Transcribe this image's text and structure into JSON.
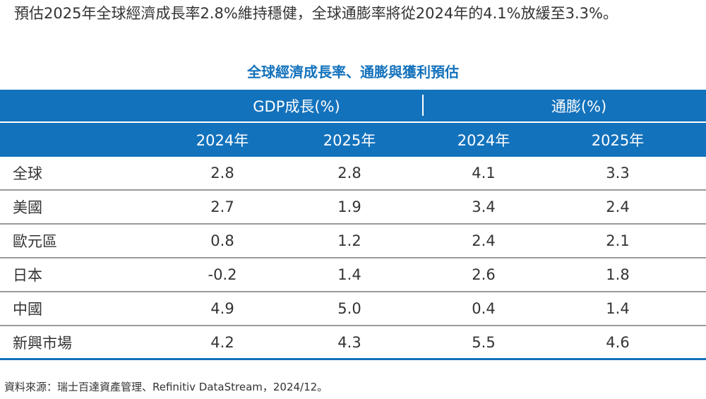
{
  "intro_text": "預估2025年全球經濟成長率2.8%維持穩健，全球通膨率將從2024年的4.1%放緩至3.3%。",
  "table": {
    "title": "全球經濟成長率、通膨與獲利預估",
    "group_headers": [
      "GDP成長(%)",
      "通膨(%)"
    ],
    "year_headers": [
      "2024年",
      "2025年",
      "2024年",
      "2025年"
    ],
    "rows": [
      {
        "region": "全球",
        "values": [
          "2.8",
          "2.8",
          "4.1",
          "3.3"
        ]
      },
      {
        "region": "美國",
        "values": [
          "2.7",
          "1.9",
          "3.4",
          "2.4"
        ]
      },
      {
        "region": "歐元區",
        "values": [
          "0.8",
          "1.2",
          "2.4",
          "2.1"
        ]
      },
      {
        "region": "日本",
        "values": [
          "-0.2",
          "1.4",
          "2.6",
          "1.8"
        ]
      },
      {
        "region": "中國",
        "values": [
          "4.9",
          "5.0",
          "0.4",
          "1.4"
        ]
      },
      {
        "region": "新興市場",
        "values": [
          "4.2",
          "4.3",
          "5.5",
          "4.6"
        ]
      }
    ]
  },
  "source": "資料來源：瑞士百達資產管理、Refinitiv DataStream，2024/12。",
  "colors": {
    "header_bg": "#1372bc",
    "title": "#1372bc",
    "row_line": "#9a9a9a"
  }
}
